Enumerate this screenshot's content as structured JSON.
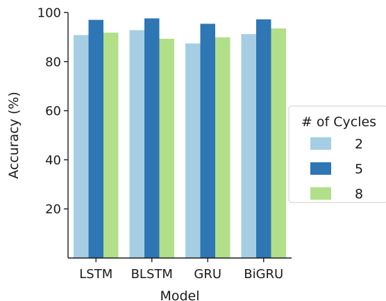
{
  "chart_data": {
    "type": "bar",
    "categories": [
      "LSTM",
      "BLSTM",
      "GRU",
      "BiGRU"
    ],
    "series": [
      {
        "name": "2",
        "values": [
          90.8,
          92.8,
          87.4,
          91.2
        ]
      },
      {
        "name": "5",
        "values": [
          97.0,
          97.6,
          95.4,
          97.2
        ]
      },
      {
        "name": "8",
        "values": [
          91.8,
          89.3,
          89.9,
          93.5
        ]
      }
    ],
    "xlabel": "Model",
    "ylabel": "Accuracy (%)",
    "ylim": [
      0,
      100
    ],
    "yticks": [
      20,
      40,
      60,
      80,
      100
    ],
    "grid": false,
    "legend": {
      "title": "# of Cycles",
      "placement": "right"
    }
  },
  "colors": {
    "2": "#a6cee3",
    "5": "#2f76b4",
    "8": "#b2df8a",
    "axis": "#1a1a1a",
    "legend_border": "#cccccc"
  }
}
